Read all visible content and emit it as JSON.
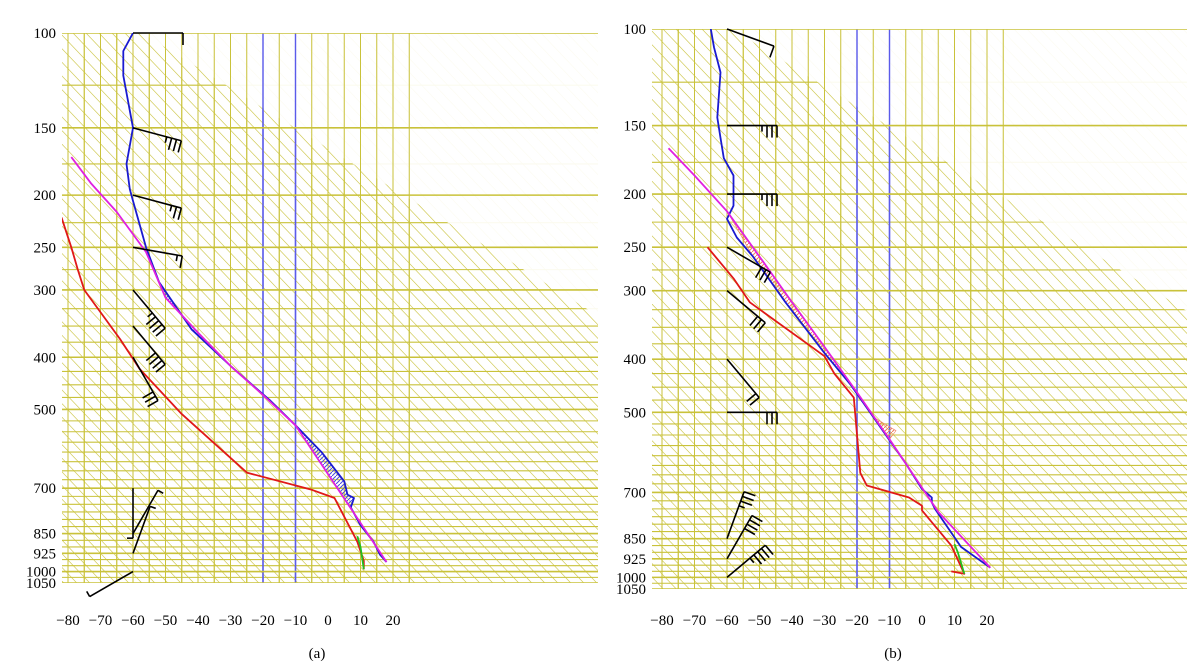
{
  "figure": {
    "panel_labels": [
      "(a)",
      "(b)"
    ]
  },
  "colors": {
    "grid": "#c9c23a",
    "hatch_grid": "#c9c23a",
    "isotherm_highlight": "#5b5bea",
    "temperature": "#e01818",
    "environment": "#1a1ad0",
    "parcel": "#e020e0",
    "surface_parcel": "#21c021",
    "cape_a": "#4a4ae0",
    "cape_b": "#f07a5a",
    "barbs": "#000000"
  },
  "chart_data": [
    {
      "type": "line",
      "panel": "(a)",
      "x_ticks": [
        "−80",
        "−70",
        "−60",
        "−50",
        "−40",
        "−30",
        "−20",
        "−10",
        "0",
        "10",
        "20"
      ],
      "x_tick_values": [
        -80,
        -70,
        -60,
        -50,
        -40,
        -30,
        -20,
        -10,
        0,
        10,
        20
      ],
      "y_ticks": [
        "100",
        "150",
        "200",
        "250",
        "300",
        "400",
        "500",
        "700",
        "850",
        "925",
        "1000",
        "1050"
      ],
      "y_tick_values": [
        100,
        150,
        200,
        250,
        300,
        400,
        500,
        700,
        850,
        925,
        1000,
        1050
      ],
      "xlim": [
        -82,
        22
      ],
      "ylim": [
        1050,
        100
      ],
      "y_scale": "log",
      "highlight_isotherms": [
        -20,
        -10
      ],
      "series": [
        {
          "role": "temperature",
          "color_key": "environment",
          "points": [
            [
              18,
              960
            ],
            [
              16,
              930
            ],
            [
              14,
              880
            ],
            [
              10,
              820
            ],
            [
              7,
              760
            ],
            [
              8,
              730
            ],
            [
              6,
              720
            ],
            [
              5,
              680
            ],
            [
              -2,
              600
            ],
            [
              -10,
              535
            ],
            [
              -18,
              480
            ],
            [
              -30,
              415
            ],
            [
              -42,
              355
            ],
            [
              -52,
              290
            ],
            [
              -56,
              250
            ],
            [
              -60,
              205
            ],
            [
              -61,
              195
            ],
            [
              -62,
              175
            ],
            [
              -60,
              150
            ],
            [
              -63,
              120
            ],
            [
              -63,
              108
            ],
            [
              -60,
              100
            ]
          ]
        },
        {
          "role": "dewpoint",
          "color_key": "temperature",
          "points": [
            [
              11,
              990
            ],
            [
              11,
              955
            ],
            [
              9,
              880
            ],
            [
              2,
              730
            ],
            [
              -5,
              705
            ],
            [
              -25,
              655
            ],
            [
              -45,
              510
            ],
            [
              -58,
              420
            ],
            [
              -64,
              370
            ],
            [
              -75,
              300
            ],
            [
              -77,
              275
            ],
            [
              -79,
              250
            ],
            [
              -82,
              220
            ]
          ]
        },
        {
          "role": "parcel",
          "color_key": "parcel",
          "points": [
            [
              18,
              960
            ],
            [
              -10,
              535
            ],
            [
              -20,
              470
            ],
            [
              -30,
              415
            ],
            [
              -40,
              360
            ],
            [
              -50,
              310
            ],
            [
              -56,
              255
            ],
            [
              -65,
              215
            ],
            [
              -73,
              190
            ],
            [
              -79,
              170
            ]
          ]
        },
        {
          "role": "surface-parcel",
          "color_key": "surface_parcel",
          "points": [
            [
              11,
              990
            ],
            [
              10,
              900
            ],
            [
              9,
              860
            ]
          ]
        }
      ],
      "cape_area": {
        "color_key": "cape_a",
        "upper": [
          [
            18,
            960
          ],
          [
            16,
            930
          ],
          [
            14,
            880
          ],
          [
            10,
            820
          ],
          [
            7,
            760
          ],
          [
            8,
            730
          ],
          [
            6,
            720
          ],
          [
            5,
            680
          ],
          [
            -2,
            600
          ],
          [
            -10,
            535
          ],
          [
            -18,
            480
          ],
          [
            -30,
            415
          ],
          [
            -42,
            355
          ],
          [
            -52,
            290
          ],
          [
            -56,
            255
          ]
        ],
        "lower": [
          [
            18,
            960
          ],
          [
            -10,
            535
          ],
          [
            -20,
            470
          ],
          [
            -30,
            415
          ],
          [
            -40,
            360
          ],
          [
            -50,
            310
          ],
          [
            -56,
            255
          ]
        ]
      },
      "wind_barbs": [
        {
          "p": 100,
          "dir": 270,
          "speed": 10
        },
        {
          "p": 150,
          "dir": 285,
          "speed": 35
        },
        {
          "p": 200,
          "dir": 285,
          "speed": 25
        },
        {
          "p": 250,
          "dir": 280,
          "speed": 15
        },
        {
          "p": 300,
          "dir": 320,
          "speed": 45
        },
        {
          "p": 350,
          "dir": 320,
          "speed": 40
        },
        {
          "p": 400,
          "dir": 330,
          "speed": 30
        },
        {
          "p": 700,
          "dir": 0,
          "speed": 5
        },
        {
          "p": 850,
          "dir": 210,
          "speed": 5
        },
        {
          "p": 925,
          "dir": 200,
          "speed": 5
        },
        {
          "p": 1000,
          "dir": 60,
          "speed": 5
        }
      ]
    },
    {
      "type": "line",
      "panel": "(b)",
      "x_ticks": [
        "−80",
        "−70",
        "−60",
        "−50",
        "−40",
        "−30",
        "−20",
        "−10",
        "0",
        "10",
        "20"
      ],
      "x_tick_values": [
        -80,
        -70,
        -60,
        -50,
        -40,
        -30,
        -20,
        -10,
        0,
        10,
        20
      ],
      "y_ticks": [
        "100",
        "150",
        "200",
        "250",
        "300",
        "400",
        "500",
        "700",
        "850",
        "925",
        "1000",
        "1050"
      ],
      "y_tick_values": [
        100,
        150,
        200,
        250,
        300,
        400,
        500,
        700,
        850,
        925,
        1000,
        1050
      ],
      "xlim": [
        -82,
        22
      ],
      "ylim": [
        1050,
        100
      ],
      "y_scale": "log",
      "highlight_isotherms": [
        -20,
        -10
      ],
      "series": [
        {
          "role": "temperature",
          "color_key": "environment",
          "points": [
            [
              21,
              960
            ],
            [
              12,
              880
            ],
            [
              4,
              750
            ],
            [
              3,
              730
            ],
            [
              3,
              715
            ],
            [
              0,
              690
            ],
            [
              -5,
              620
            ],
            [
              -15,
              510
            ],
            [
              -22,
              445
            ],
            [
              -30,
              390
            ],
            [
              -42,
              315
            ],
            [
              -52,
              260
            ],
            [
              -57,
              240
            ],
            [
              -60,
              222
            ],
            [
              -58,
              210
            ],
            [
              -58,
              195
            ],
            [
              -58,
              185
            ],
            [
              -61,
              172
            ],
            [
              -62,
              158
            ],
            [
              -63,
              145
            ],
            [
              -62,
              120
            ],
            [
              -64,
              108
            ],
            [
              -65,
              100
            ]
          ]
        },
        {
          "role": "dewpoint",
          "color_key": "temperature",
          "points": [
            [
              9,
              975
            ],
            [
              13,
              985
            ],
            [
              9,
              875
            ],
            [
              0,
              755
            ],
            [
              0,
              740
            ],
            [
              -4,
              715
            ],
            [
              -17,
              680
            ],
            [
              -19,
              645
            ],
            [
              -21,
              470
            ],
            [
              -27,
              425
            ],
            [
              -30,
              395
            ],
            [
              -53,
              315
            ],
            [
              -58,
              285
            ],
            [
              -66,
              250
            ]
          ]
        },
        {
          "role": "parcel",
          "color_key": "parcel",
          "points": [
            [
              21,
              960
            ],
            [
              5,
              760
            ],
            [
              -10,
              560
            ],
            [
              -20,
              460
            ],
            [
              -30,
              380
            ],
            [
              -40,
              315
            ],
            [
              -50,
              260
            ],
            [
              -60,
              215
            ],
            [
              -70,
              185
            ],
            [
              -78,
              165
            ]
          ]
        },
        {
          "role": "surface-parcel",
          "color_key": "surface_parcel",
          "points": [
            [
              13,
              985
            ],
            [
              11,
              900
            ],
            [
              10,
              870
            ]
          ]
        }
      ],
      "cape_area": {
        "color_key": "cape_b",
        "upper": [
          [
            -8,
            540
          ],
          [
            -10,
            560
          ],
          [
            -20,
            460
          ],
          [
            -30,
            380
          ],
          [
            -40,
            315
          ],
          [
            -50,
            260
          ],
          [
            -59,
            220
          ]
        ],
        "lower": [
          [
            -8,
            540
          ],
          [
            -15,
            510
          ],
          [
            -22,
            445
          ],
          [
            -30,
            390
          ],
          [
            -42,
            315
          ],
          [
            -52,
            260
          ],
          [
            -59,
            220
          ]
        ]
      },
      "wind_barbs": [
        {
          "p": 100,
          "dir": 290,
          "speed": 10
        },
        {
          "p": 150,
          "dir": 270,
          "speed": 35
        },
        {
          "p": 200,
          "dir": 270,
          "speed": 35
        },
        {
          "p": 250,
          "dir": 300,
          "speed": 30
        },
        {
          "p": 300,
          "dir": 310,
          "speed": 30
        },
        {
          "p": 400,
          "dir": 320,
          "speed": 20
        },
        {
          "p": 500,
          "dir": 270,
          "speed": 30
        },
        {
          "p": 850,
          "dir": 200,
          "speed": 35
        },
        {
          "p": 925,
          "dir": 210,
          "speed": 40
        },
        {
          "p": 1000,
          "dir": 230,
          "speed": 45
        }
      ]
    }
  ]
}
